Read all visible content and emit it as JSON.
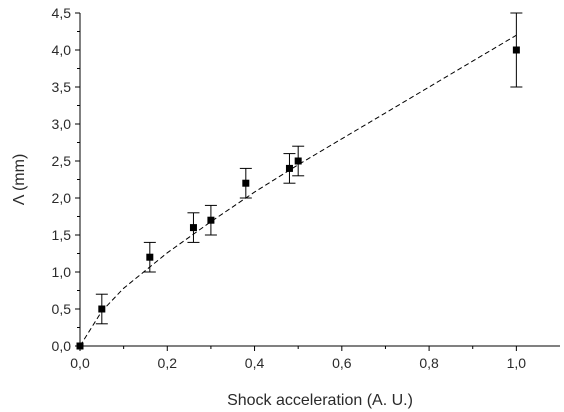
{
  "chart_data": {
    "type": "scatter",
    "title": "",
    "xlabel": "Shock acceleration (A. U.)",
    "ylabel": "Λ (mm)",
    "xlim": [
      0,
      1.1
    ],
    "ylim": [
      0,
      4.5
    ],
    "x_ticks": [
      0.0,
      0.2,
      0.4,
      0.6,
      0.8,
      1.0
    ],
    "x_tick_labels": [
      "0,0",
      "0,2",
      "0,4",
      "0,6",
      "0,8",
      "1,0"
    ],
    "y_ticks": [
      0.0,
      0.5,
      1.0,
      1.5,
      2.0,
      2.5,
      3.0,
      3.5,
      4.0,
      4.5
    ],
    "y_tick_labels": [
      "0,0",
      "0,5",
      "1,0",
      "1,5",
      "2,0",
      "2,5",
      "3,0",
      "3,5",
      "4,0",
      "4,5"
    ],
    "grid": false,
    "series": [
      {
        "marker": "square",
        "color": "#000000",
        "points": [
          {
            "x": 0.0,
            "y": 0.0,
            "err": 0.0
          },
          {
            "x": 0.05,
            "y": 0.5,
            "err": 0.2
          },
          {
            "x": 0.16,
            "y": 1.2,
            "err": 0.2
          },
          {
            "x": 0.26,
            "y": 1.6,
            "err": 0.2
          },
          {
            "x": 0.3,
            "y": 1.7,
            "err": 0.2
          },
          {
            "x": 0.38,
            "y": 2.2,
            "err": 0.2
          },
          {
            "x": 0.48,
            "y": 2.4,
            "err": 0.2
          },
          {
            "x": 0.5,
            "y": 2.5,
            "err": 0.2
          },
          {
            "x": 1.0,
            "y": 4.0,
            "err": 0.5
          }
        ]
      }
    ],
    "fit": {
      "style": "dashed",
      "color": "#000000",
      "x": [
        0.0,
        0.05,
        0.1,
        0.2,
        0.3,
        0.4,
        0.5,
        0.6,
        0.7,
        0.8,
        0.9,
        1.0
      ],
      "y": [
        0.0,
        0.47,
        0.78,
        1.26,
        1.68,
        2.08,
        2.45,
        2.8,
        3.15,
        3.5,
        3.85,
        4.2
      ]
    }
  }
}
